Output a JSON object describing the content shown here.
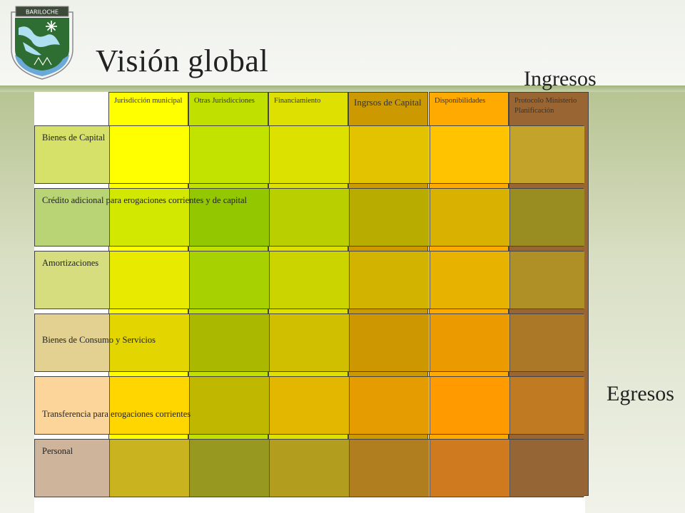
{
  "logo": {
    "text": "BARILOCHE",
    "icon": "bariloche-shield-icon"
  },
  "title": "Visión global",
  "ingresos_label": "Ingresos",
  "egresos_label": "Egresos",
  "columns": [
    {
      "label": "Jurisdicción municipal",
      "color": "#ffff00"
    },
    {
      "label": "Otras Jurisdicciones",
      "color": "#c0e000"
    },
    {
      "label": "Financiamiento",
      "color": "#dde000"
    },
    {
      "label": "Ingrsos de Capital",
      "color": "#cc9900"
    },
    {
      "label": "Disponibilidades",
      "color": "#ffaa00"
    },
    {
      "label": "Protocolo Ministerio Planificación",
      "color": "#996633"
    }
  ],
  "rows": [
    {
      "label": "Bienes de Capital",
      "tint": "#d6e16a",
      "cells": [
        "#ffff00",
        "#c2e300",
        "#dde100",
        "#e3c300",
        "#ffc300",
        "#c4a32a"
      ]
    },
    {
      "label": "Crédito adicional para erogaciones corrientes y de capital",
      "tint": "#b9d474",
      "cells": [
        "#d2e800",
        "#93c700",
        "#bacf00",
        "#b8ac00",
        "#d9b100",
        "#998d22"
      ]
    },
    {
      "label": "Amortizaciones",
      "tint": "#d6dd7f",
      "cells": [
        "#e8ea00",
        "#a7d100",
        "#ccd400",
        "#d1b300",
        "#e8b300",
        "#ae9026"
      ]
    },
    {
      "label": "Bienes de Consumo y Servicios",
      "tint": "#e3d191",
      "cells": [
        "#e3d600",
        "#abb800",
        "#d0bf00",
        "#cc9700",
        "#eb9a00",
        "#aa7827"
      ]
    },
    {
      "label": "Transferencia para erogaciones corrientes",
      "tint": "#fcd59a",
      "cells": [
        "#ffd600",
        "#bfb700",
        "#e3b700",
        "#e59c00",
        "#ff9a00",
        "#c07a22"
      ]
    },
    {
      "label": "Personal",
      "tint": "#cdb49a",
      "cells": [
        "#c9b41f",
        "#97981f",
        "#b39d1f",
        "#b07d1f",
        "#d07a1f",
        "#966536"
      ]
    }
  ]
}
